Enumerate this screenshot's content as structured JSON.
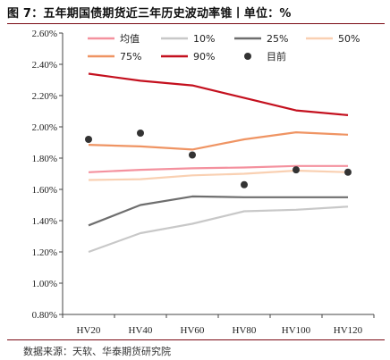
{
  "header": {
    "title": "图 7：五年期国债期货近三年历史波动率锥丨单位：%"
  },
  "footer": {
    "source": "数据来源：天软、华泰期货研究院"
  },
  "chart_data": {
    "type": "line",
    "categories": [
      "HV20",
      "HV40",
      "HV60",
      "HV80",
      "HV100",
      "HV120"
    ],
    "ylim": [
      0.8,
      2.6
    ],
    "yticks": [
      "0.80%",
      "1.00%",
      "1.20%",
      "1.40%",
      "1.60%",
      "1.80%",
      "2.00%",
      "2.20%",
      "2.40%",
      "2.60%"
    ],
    "grid": false,
    "legend": "top",
    "series": [
      {
        "name": "均值",
        "color": "#f4919e",
        "values": [
          1.71,
          1.725,
          1.735,
          1.74,
          1.75,
          1.75
        ]
      },
      {
        "name": "10%",
        "color": "#c8c8c8",
        "values": [
          1.2,
          1.32,
          1.38,
          1.46,
          1.47,
          1.49
        ]
      },
      {
        "name": "25%",
        "color": "#6e6e6e",
        "values": [
          1.37,
          1.5,
          1.555,
          1.55,
          1.55,
          1.55
        ]
      },
      {
        "name": "50%",
        "color": "#f9d0b2",
        "values": [
          1.66,
          1.665,
          1.69,
          1.7,
          1.72,
          1.71
        ]
      },
      {
        "name": "75%",
        "color": "#ef9463",
        "values": [
          1.885,
          1.875,
          1.855,
          1.92,
          1.965,
          1.95
        ]
      },
      {
        "name": "90%",
        "color": "#c4101e",
        "values": [
          2.34,
          2.295,
          2.265,
          2.185,
          2.105,
          2.075
        ]
      }
    ],
    "current": {
      "name": "目前",
      "color": "#333333",
      "values": [
        1.92,
        1.96,
        1.82,
        1.63,
        1.725,
        1.71
      ]
    }
  }
}
